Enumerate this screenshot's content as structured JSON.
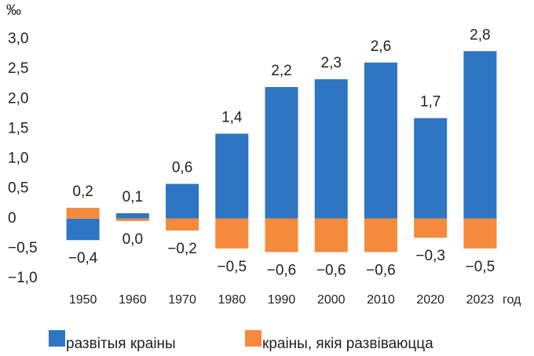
{
  "chart_data": {
    "type": "bar",
    "y_label": "‰",
    "x_label": "год",
    "categories": [
      "1950",
      "1960",
      "1970",
      "1980",
      "1990",
      "2000",
      "2010",
      "2020",
      "2023"
    ],
    "series": [
      {
        "name": "развітыя краіны",
        "color": "#2e75c3",
        "values": [
          -0.36,
          0.09,
          0.58,
          1.42,
          2.2,
          2.33,
          2.61,
          1.68,
          2.8
        ],
        "value_labels": [
          "−0,4",
          "0,1",
          "0,6",
          "1,4",
          "2,2",
          "2,3",
          "2,6",
          "1,7",
          "2,8"
        ]
      },
      {
        "name": "краіны, якія развіваюцца",
        "color": "#f58a3c",
        "values": [
          0.18,
          -0.04,
          -0.2,
          -0.5,
          -0.56,
          -0.56,
          -0.56,
          -0.32,
          -0.5
        ],
        "value_labels": [
          "0,2",
          "0,0",
          "−0,2",
          "−0,5",
          "−0,6",
          "−0,6",
          "−0,6",
          "−0,3",
          "−0,5"
        ]
      }
    ],
    "ylim": [
      -1,
      3
    ],
    "yticks": [
      {
        "value": 3,
        "label": "3,0"
      },
      {
        "value": 2.5,
        "label": "2,5"
      },
      {
        "value": 2,
        "label": "2,0"
      },
      {
        "value": 1.5,
        "label": "1,5"
      },
      {
        "value": 1,
        "label": "1,0"
      },
      {
        "value": 0.5,
        "label": "0,5"
      },
      0,
      {
        "value": -0.5,
        "label": "−0,5"
      },
      {
        "value": -1,
        "label": "−1,0"
      }
    ],
    "grid": false
  }
}
